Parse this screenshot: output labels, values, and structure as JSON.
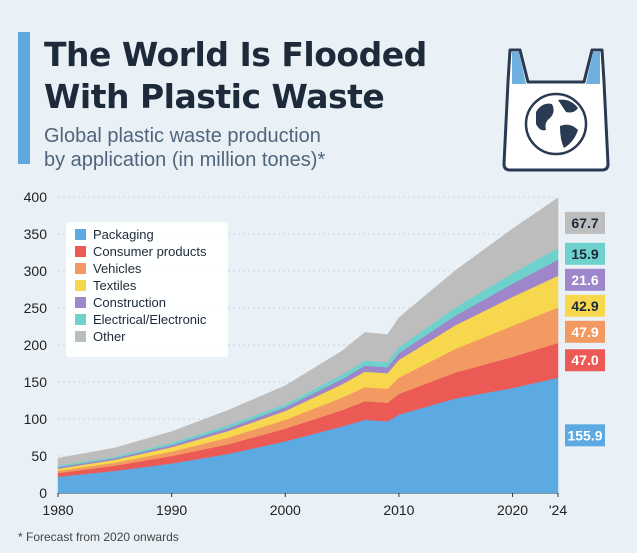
{
  "header": {
    "title_line1": "The World Is Flooded",
    "title_line2": "With Plastic Waste",
    "subtitle_line1": "Global plastic waste production",
    "subtitle_line2": "by application (in million tones)*"
  },
  "footnote": "* Forecast from 2020 onwards",
  "icon": "plastic-bag-globe-icon",
  "colors": {
    "Packaging": "#5da9e1",
    "Consumer products": "#ec5a55",
    "Vehicles": "#f29a62",
    "Textiles": "#f6d74e",
    "Construction": "#9d86c9",
    "Electrical/Electronic": "#6fd1cc",
    "Other": "#bdbdbd",
    "accent": "#5fa7dc",
    "background": "#e9f1f7"
  },
  "chart_data": {
    "type": "area",
    "stacked": true,
    "title": "The World Is Flooded With Plastic Waste",
    "subtitle": "Global plastic waste production by application (in million tones)*",
    "xlabel": "",
    "ylabel": "",
    "ylim": [
      0,
      400
    ],
    "yticks": [
      0,
      50,
      100,
      150,
      200,
      250,
      300,
      350,
      400
    ],
    "xticks": [
      "1980",
      "1990",
      "2000",
      "2010",
      "2020",
      "'24"
    ],
    "xtick_values": [
      1980,
      1990,
      2000,
      2010,
      2020,
      2024
    ],
    "x": [
      1980,
      1985,
      1990,
      1995,
      2000,
      2005,
      2007,
      2009,
      2010,
      2015,
      2020,
      2024
    ],
    "legend_position": "top-left",
    "series": [
      {
        "name": "Packaging",
        "values": [
          22,
          30,
          40,
          53,
          70,
          90,
          99,
          97,
          106,
          128,
          142,
          155.9
        ]
      },
      {
        "name": "Consumer products",
        "values": [
          5,
          7,
          10,
          13,
          17,
          22,
          25,
          25,
          28,
          35,
          42,
          47.0
        ]
      },
      {
        "name": "Vehicles",
        "values": [
          3,
          4,
          6,
          9,
          12,
          17,
          19,
          19,
          22,
          32,
          42,
          47.9
        ]
      },
      {
        "name": "Textiles",
        "values": [
          3,
          4,
          6,
          9,
          12,
          18,
          21,
          21,
          24,
          32,
          39,
          42.9
        ]
      },
      {
        "name": "Construction",
        "values": [
          2,
          2,
          3,
          4,
          5,
          7,
          8,
          8,
          9,
          13,
          18,
          21.6
        ]
      },
      {
        "name": "Electrical/Electronic",
        "values": [
          2,
          2,
          3,
          4,
          4,
          6,
          7,
          7,
          8,
          11,
          14,
          15.9
        ]
      },
      {
        "name": "Other",
        "values": [
          10,
          12,
          15,
          20,
          25,
          32,
          38,
          37,
          40,
          50,
          60,
          67.7
        ]
      }
    ],
    "end_labels": [
      {
        "series": "Other",
        "text": "67.7"
      },
      {
        "series": "Electrical/Electronic",
        "text": "15.9"
      },
      {
        "series": "Construction",
        "text": "21.6"
      },
      {
        "series": "Textiles",
        "text": "42.9"
      },
      {
        "series": "Vehicles",
        "text": "47.9"
      },
      {
        "series": "Consumer products",
        "text": "47.0"
      },
      {
        "series": "Packaging",
        "text": "155.9"
      }
    ]
  }
}
